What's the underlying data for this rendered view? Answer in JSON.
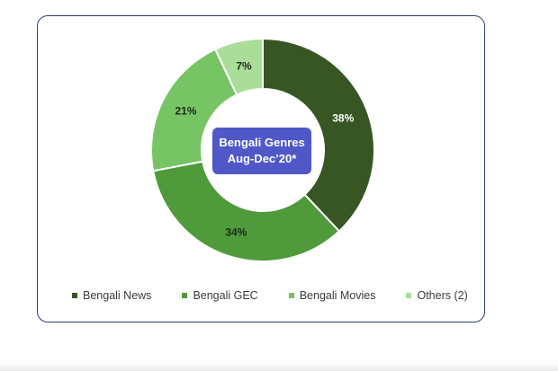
{
  "chart_data": {
    "type": "pie",
    "variant": "donut",
    "center_label": {
      "line1": "Bengali Genres",
      "line2": "Aug-Dec’20*",
      "background": "#5058c8"
    },
    "categories": [
      "Bengali News",
      "Bengali GEC",
      "Bengali Movies",
      "Others (2)"
    ],
    "values": [
      38,
      34,
      21,
      7
    ],
    "value_labels": [
      "38%",
      "34%",
      "21%",
      "7%"
    ],
    "colors": [
      "#375623",
      "#4f9a3a",
      "#76c464",
      "#a9dd98"
    ],
    "label_colors": [
      "#ffffff",
      "#1f2a1a",
      "#1f2a1a",
      "#1f2a1a"
    ],
    "legend_position": "bottom"
  }
}
